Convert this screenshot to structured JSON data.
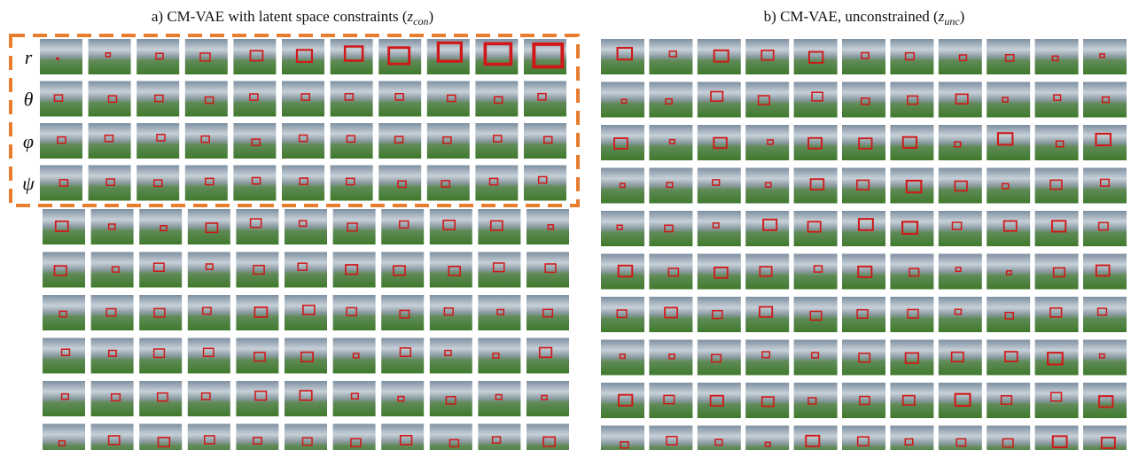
{
  "panels": [
    {
      "title": {
        "prefix": "a) CM-VAE with latent space constraints (",
        "var": "z",
        "sub": "con",
        "suffix": ")"
      },
      "row_labels": [
        "r",
        "θ",
        "φ",
        "ψ"
      ]
    },
    {
      "title": {
        "prefix": "b) CM-VAE, unconstrained (",
        "var": "z",
        "sub": "unc",
        "suffix": ")"
      }
    }
  ]
}
